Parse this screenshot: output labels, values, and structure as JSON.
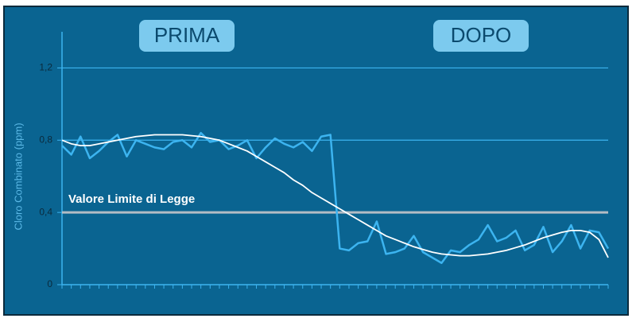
{
  "chart_data": {
    "type": "line",
    "y_label": "Cloro Combinato (ppm)",
    "ylim": [
      0,
      1.4
    ],
    "yticks": [
      0,
      {
        "value": 0.4,
        "label": "0,4"
      },
      {
        "value": 0.8,
        "label": "0,8"
      },
      {
        "value": 1.2,
        "label": "1,2"
      }
    ],
    "grid": true,
    "limit_line": {
      "value": 0.4,
      "label": "Valore Limite di Legge",
      "color": "#b4bcc4"
    },
    "phases": [
      "PRIMA",
      "DOPO"
    ],
    "categories": [
      null,
      null,
      null,
      null,
      null,
      null,
      null,
      null,
      null,
      null,
      null,
      null,
      null,
      null,
      null,
      null,
      null,
      null,
      null,
      null,
      null,
      null,
      null,
      null,
      null,
      null,
      null,
      null,
      null,
      null,
      null,
      null,
      null,
      null,
      null,
      null,
      null,
      null,
      null,
      null,
      null,
      null,
      null,
      null,
      null,
      null,
      null,
      null,
      null,
      null,
      null,
      null,
      null,
      null,
      null,
      null,
      null,
      null,
      null,
      null
    ],
    "series": [
      {
        "color": "#3cb4f0",
        "values": [
          0.77,
          0.72,
          0.82,
          0.7,
          0.74,
          0.79,
          0.83,
          0.71,
          0.8,
          0.78,
          0.76,
          0.75,
          0.79,
          0.8,
          0.76,
          0.84,
          0.79,
          0.8,
          0.75,
          0.77,
          0.8,
          0.7,
          0.76,
          0.81,
          0.78,
          0.76,
          0.79,
          0.74,
          0.82,
          0.83,
          0.2,
          0.19,
          0.23,
          0.24,
          0.35,
          0.17,
          0.18,
          0.2,
          0.27,
          0.18,
          0.15,
          0.12,
          0.19,
          0.18,
          0.22,
          0.25,
          0.33,
          0.24,
          0.26,
          0.3,
          0.19,
          0.22,
          0.32,
          0.18,
          0.24,
          0.33,
          0.2,
          0.3,
          0.29,
          0.2
        ]
      },
      {
        "color": "#ffffff",
        "values": [
          0.8,
          0.78,
          0.77,
          0.77,
          0.78,
          0.79,
          0.8,
          0.81,
          0.82,
          0.825,
          0.83,
          0.83,
          0.83,
          0.83,
          0.825,
          0.82,
          0.81,
          0.8,
          0.78,
          0.76,
          0.74,
          0.71,
          0.68,
          0.65,
          0.62,
          0.58,
          0.55,
          0.51,
          0.48,
          0.45,
          0.42,
          0.39,
          0.36,
          0.33,
          0.3,
          0.27,
          0.25,
          0.23,
          0.21,
          0.195,
          0.18,
          0.17,
          0.165,
          0.16,
          0.16,
          0.165,
          0.17,
          0.18,
          0.19,
          0.205,
          0.22,
          0.24,
          0.26,
          0.275,
          0.29,
          0.3,
          0.3,
          0.29,
          0.25,
          0.15
        ]
      }
    ]
  }
}
